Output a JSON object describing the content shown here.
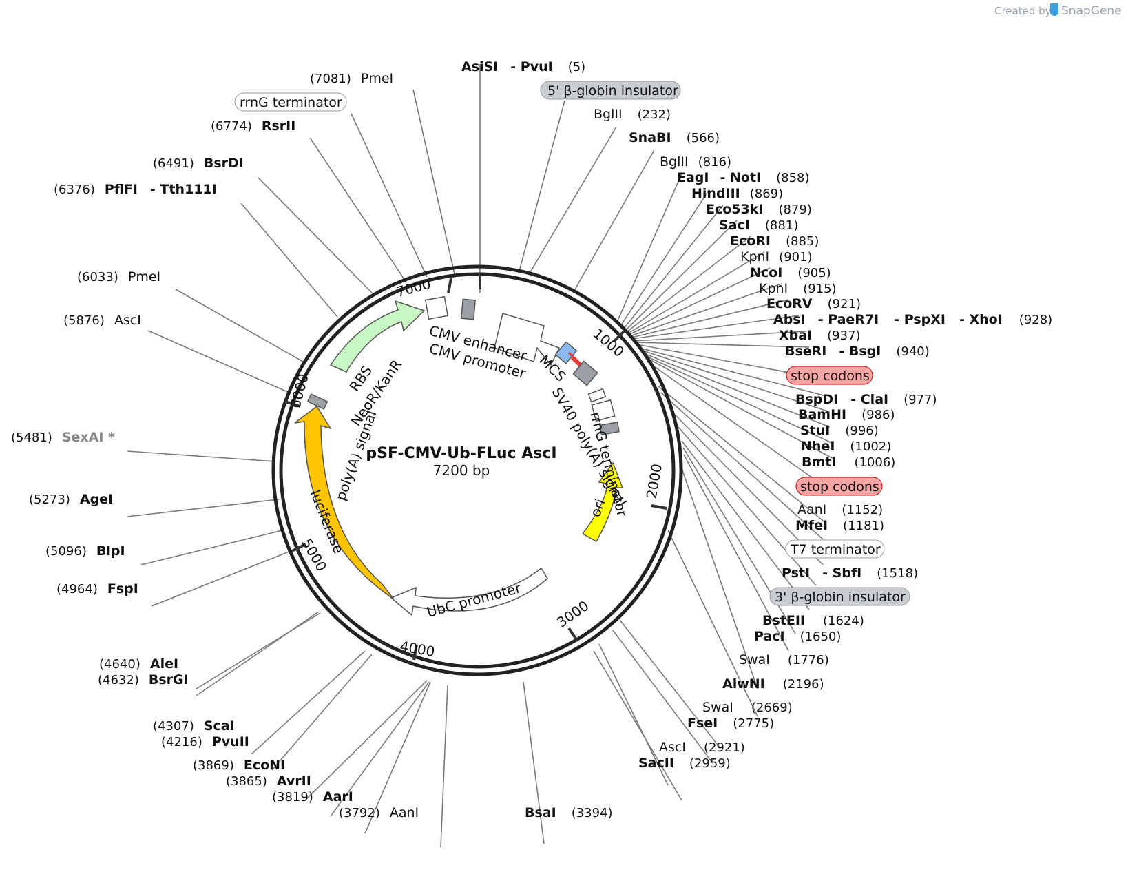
{
  "header": {
    "created_by": "Created by",
    "brand": "SnapGene"
  },
  "plasmid": {
    "name": "pSF-CMV-Ub-FLuc AscI",
    "length": "7200 bp"
  },
  "scale_ticks": [
    "1000",
    "2000",
    "3000",
    "4000",
    "5000",
    "6000",
    "7000"
  ],
  "features": {
    "cmv_enhancer": "CMV enhancer",
    "cmv_promoter": "CMV promoter",
    "mcs": "MCS",
    "sv40": "SV40 poly(A) signal",
    "rrng": "rrnG terminator",
    "ori": "ori",
    "ubc": "UbC promoter",
    "luciferase": "luciferase",
    "polya": "poly(A) signal",
    "neor": "NeoR/KanR",
    "rbs": "RBS"
  },
  "badges": {
    "insulator5": "5' β-globin insulator",
    "rrng_term": "rrnG terminator",
    "stop1": "stop codons",
    "stop2": "stop codons",
    "t7": "T7 terminator",
    "insulator3": "3' β-globin insulator"
  },
  "sites": {
    "asisi": {
      "a": "AsiSI",
      "b": "- PvuI",
      "pos": "(5)"
    },
    "bglii1": {
      "name": "BglII",
      "pos": "(232)"
    },
    "snabi": {
      "name": "SnaBI",
      "pos": "(566)"
    },
    "bglii2": {
      "name": "BglII",
      "pos": "(816)"
    },
    "eagi": {
      "a": "EagI",
      "b": "- NotI",
      "pos": "(858)"
    },
    "hindiii": {
      "name": "HindIII",
      "pos": "(869)"
    },
    "eco53ki": {
      "name": "Eco53kI",
      "pos": "(879)"
    },
    "saci": {
      "name": "SacI",
      "pos": "(881)"
    },
    "ecori": {
      "name": "EcoRI",
      "pos": "(885)"
    },
    "kpni1": {
      "name": "KpnI",
      "pos": "(901)"
    },
    "ncoi": {
      "name": "NcoI",
      "pos": "(905)"
    },
    "kpni2": {
      "name": "KpnI",
      "pos": "(915)"
    },
    "ecorv": {
      "name": "EcoRV",
      "pos": "(921)"
    },
    "absi": {
      "a": "AbsI",
      "b": "- PaeR7I",
      "c": "- PspXI",
      "d": "- XhoI",
      "pos": "(928)"
    },
    "xbai": {
      "name": "XbaI",
      "pos": "(937)"
    },
    "bseri": {
      "a": "BseRI",
      "b": "- BsgI",
      "pos": "(940)"
    },
    "bspdi": {
      "a": "BspDI",
      "b": "- ClaI",
      "pos": "(977)"
    },
    "bamhi": {
      "name": "BamHI",
      "pos": "(986)"
    },
    "stui": {
      "name": "StuI",
      "pos": "(996)"
    },
    "nhei": {
      "name": "NheI",
      "pos": "(1002)"
    },
    "bmti": {
      "name": "BmtI",
      "pos": "(1006)"
    },
    "aani1": {
      "name": "AanI",
      "pos": "(1152)"
    },
    "mfei": {
      "name": "MfeI",
      "pos": "(1181)"
    },
    "psti": {
      "a": "PstI",
      "b": "- SbfI",
      "pos": "(1518)"
    },
    "bsteii": {
      "name": "BstEII",
      "pos": "(1624)"
    },
    "paci": {
      "name": "PacI",
      "pos": "(1650)"
    },
    "swai1": {
      "name": "SwaI",
      "pos": "(1776)"
    },
    "alwni": {
      "name": "AlwNI",
      "pos": "(2196)"
    },
    "swai2": {
      "name": "SwaI",
      "pos": "(2669)"
    },
    "fsei": {
      "name": "FseI",
      "pos": "(2775)"
    },
    "asci1": {
      "name": "AscI",
      "pos": "(2921)"
    },
    "sacii": {
      "name": "SacII",
      "pos": "(2959)"
    },
    "bsai": {
      "name": "BsaI",
      "pos": "(3394)"
    },
    "aani2": {
      "name": "AanI",
      "pos": "(3792)"
    },
    "aari": {
      "name": "AarI",
      "pos": "(3819)"
    },
    "avrii": {
      "name": "AvrII",
      "pos": "(3865)"
    },
    "econi": {
      "name": "EcoNI",
      "pos": "(3869)"
    },
    "pvuii": {
      "name": "PvuII",
      "pos": "(4216)"
    },
    "scai": {
      "name": "ScaI",
      "pos": "(4307)"
    },
    "bsrgi": {
      "name": "BsrGI",
      "pos": "(4632)"
    },
    "alei": {
      "name": "AleI",
      "pos": "(4640)"
    },
    "fspi": {
      "name": "FspI",
      "pos": "(4964)"
    },
    "blpi": {
      "name": "BlpI",
      "pos": "(5096)"
    },
    "agei": {
      "name": "AgeI",
      "pos": "(5273)"
    },
    "sexai": {
      "name": "SexAI *",
      "pos": "(5481)"
    },
    "asci2": {
      "name": "AscI",
      "pos": "(5876)"
    },
    "pmei1": {
      "name": "PmeI",
      "pos": "(6033)"
    },
    "pflfi": {
      "a": "PflFI",
      "b": "- Tth111I",
      "pos": "(6376)"
    },
    "bsrdi": {
      "name": "BsrDI",
      "pos": "(6491)"
    },
    "rsrii": {
      "name": "RsrII",
      "pos": "(6774)"
    },
    "pmei2": {
      "name": "PmeI",
      "pos": "(7081)"
    }
  }
}
